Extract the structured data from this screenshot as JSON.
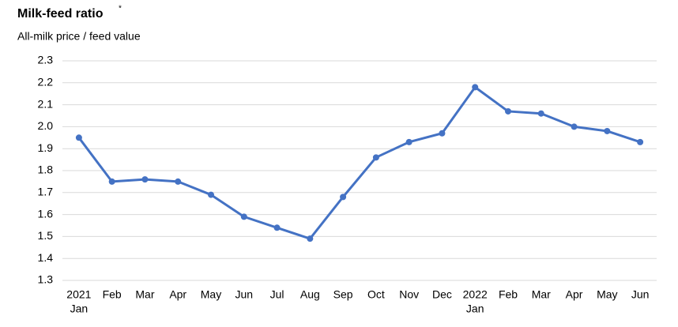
{
  "chart_data": {
    "type": "line",
    "title": "Milk-feed  ratio",
    "title_mark": "*",
    "subtitle": "All-milk price / feed value",
    "categories": [
      [
        "2021",
        "Jan"
      ],
      "Feb",
      "Mar",
      "Apr",
      "May",
      "Jun",
      "Jul",
      "Aug",
      "Sep",
      "Oct",
      "Nov",
      "Dec",
      [
        "2022",
        "Jan"
      ],
      "Feb",
      "Mar",
      "Apr",
      "May",
      "Jun"
    ],
    "series": [
      {
        "name": "Milk-feed ratio",
        "color": "#4472c4",
        "values": [
          1.95,
          1.75,
          1.76,
          1.75,
          1.69,
          1.59,
          1.54,
          1.49,
          1.68,
          1.86,
          1.93,
          1.97,
          2.18,
          2.07,
          2.06,
          2.0,
          1.98,
          1.93
        ]
      }
    ],
    "ylim": [
      1.3,
      2.3
    ],
    "yticks": [
      1.3,
      1.4,
      1.5,
      1.6,
      1.7,
      1.8,
      1.9,
      {
        "value": 2,
        "label": "2.0"
      },
      2.1,
      2.2,
      2.3
    ],
    "grid": true
  }
}
